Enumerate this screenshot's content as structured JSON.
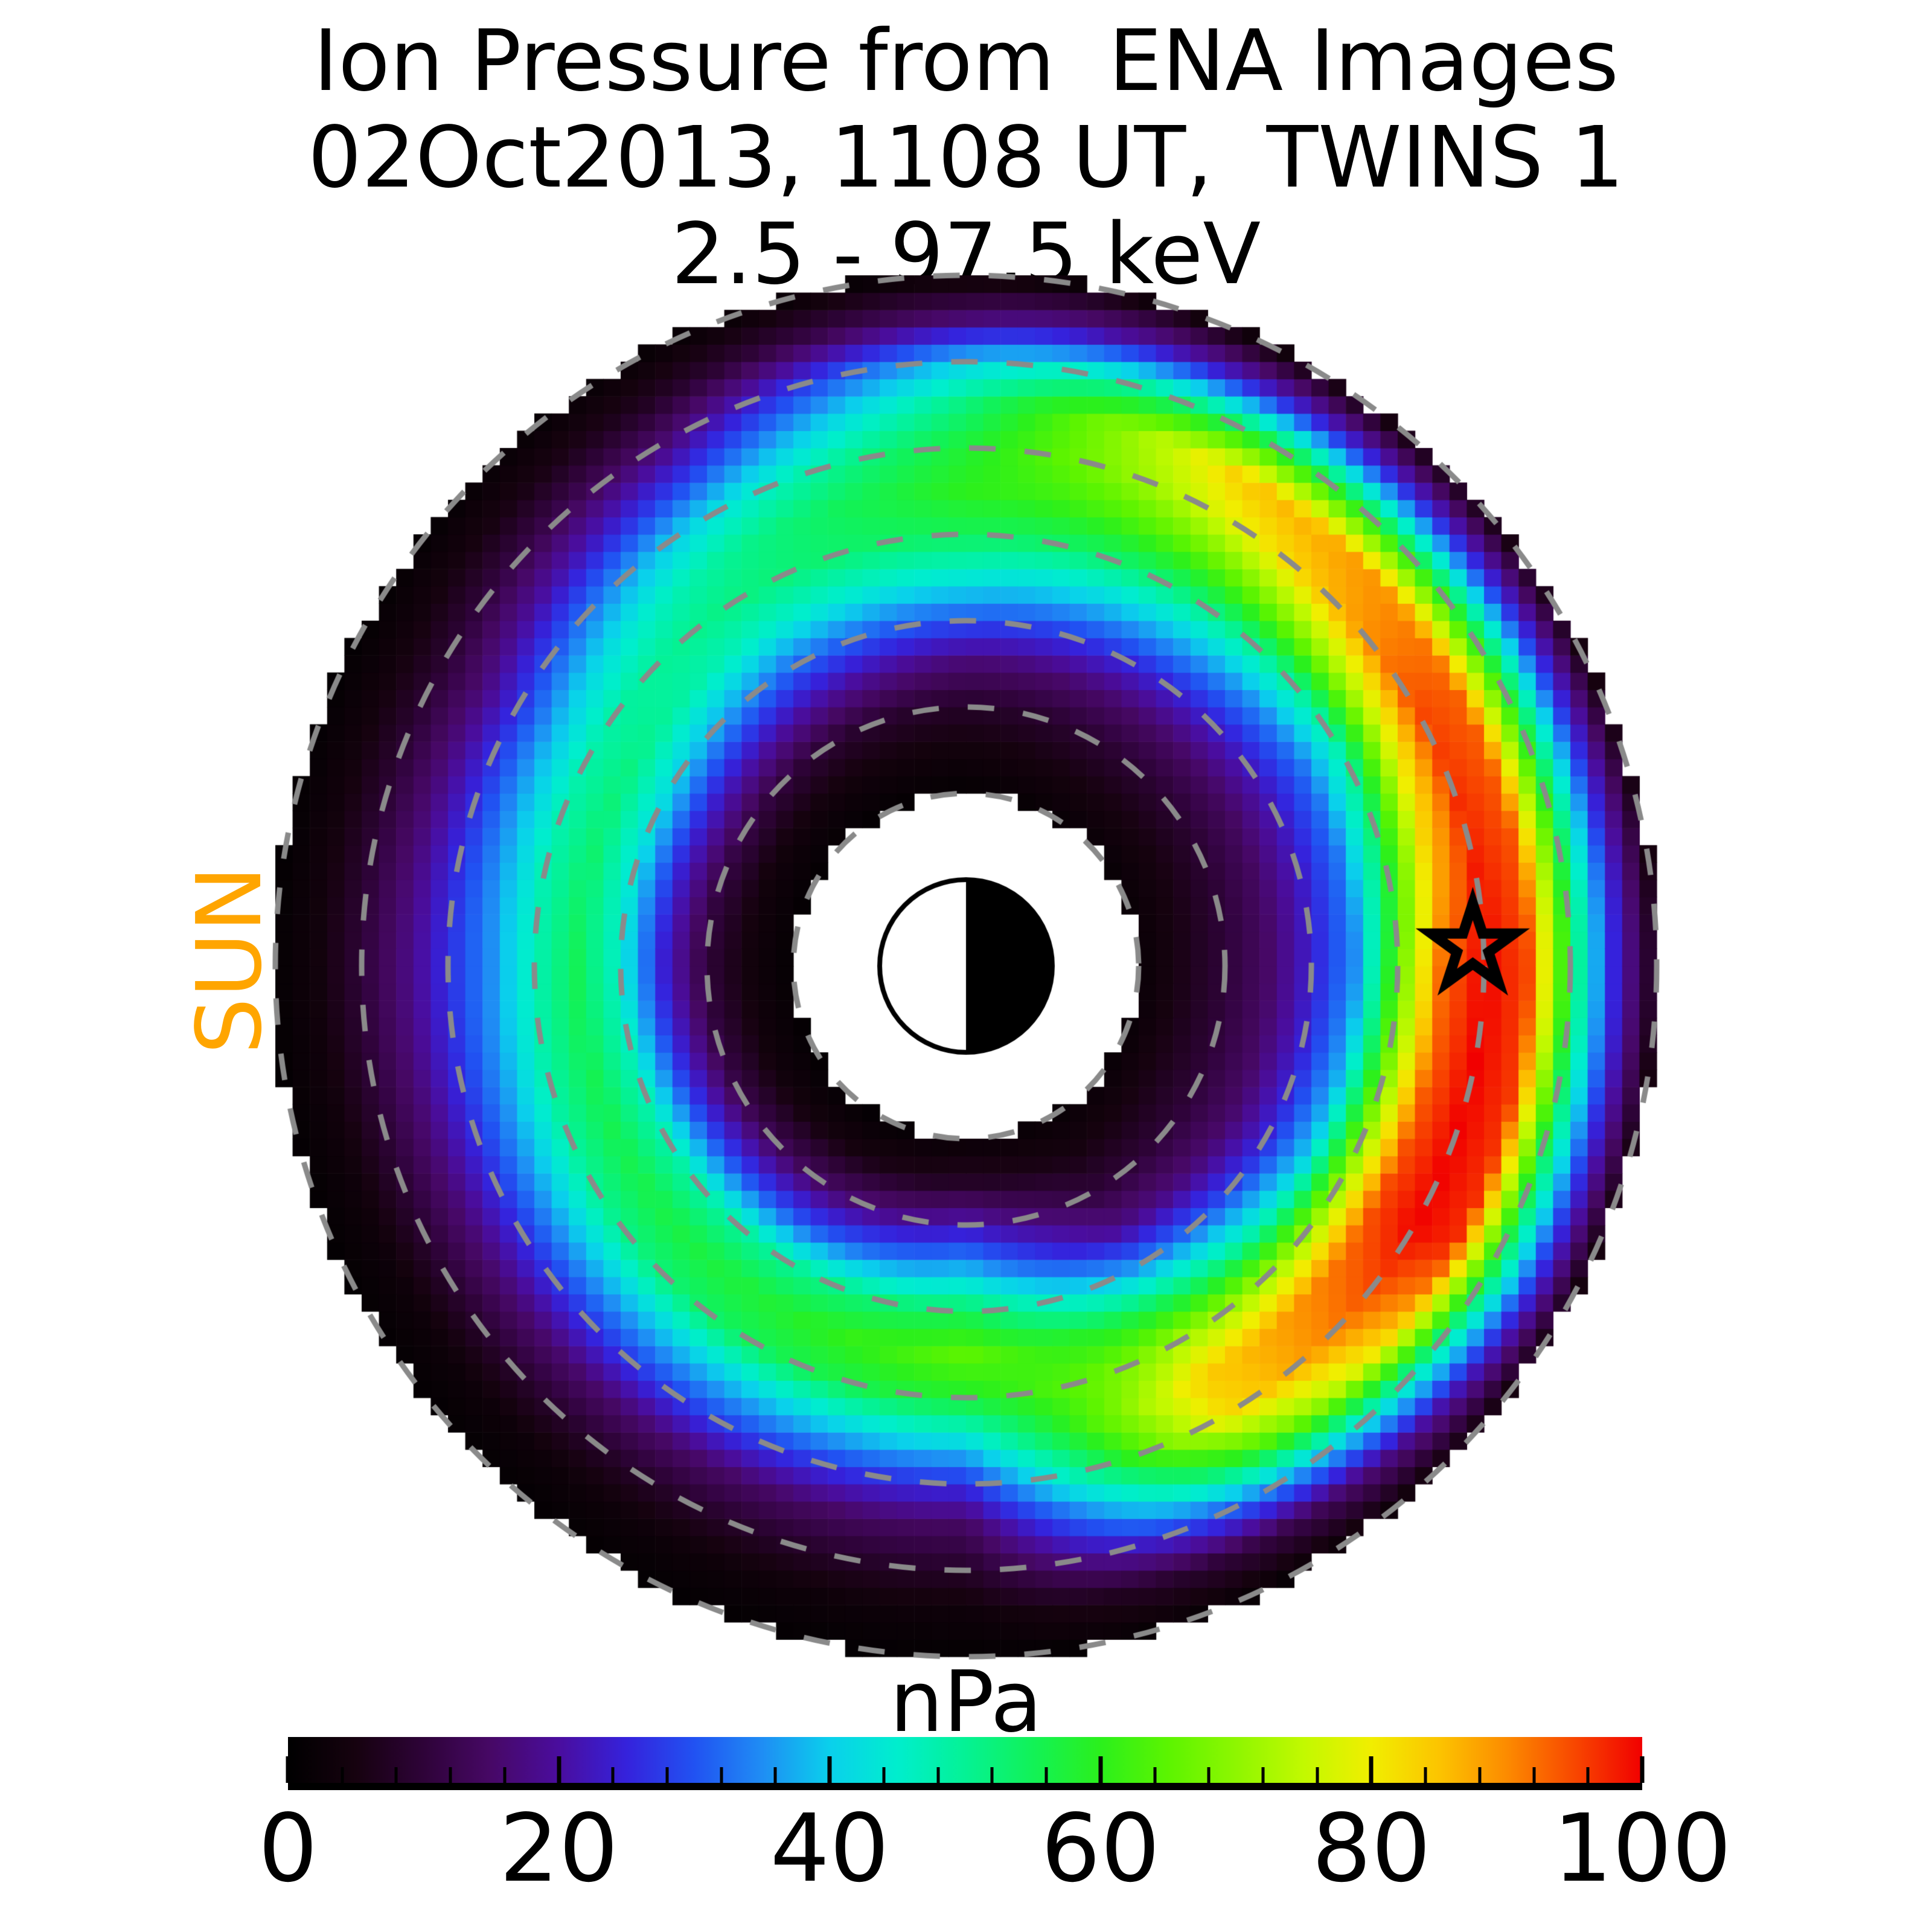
{
  "title": {
    "line1": "Ion Pressure from  ENA Images",
    "line2": "02Oct2013, 1108 UT,  TWINS 1",
    "line3": "2.5 - 97.5 keV"
  },
  "sun_label": {
    "text": "SUN",
    "color": "#FFA500"
  },
  "plot": {
    "dashed_rings_re": [
      2,
      3,
      4,
      5,
      6,
      7,
      8
    ],
    "ring_color": "#8a8a8a",
    "hole_radius_re": 2,
    "outer_radius_re": 8,
    "earth": {
      "radius_re": 1,
      "dayside": "left",
      "nightside": "right"
    },
    "star_marker": {
      "x_re": 5.87,
      "y_re": 0.22,
      "color": "#000000"
    }
  },
  "colorbar": {
    "label": "nPa",
    "min": 0,
    "max": 100,
    "major_ticks": [
      0,
      20,
      40,
      60,
      80,
      100
    ],
    "minor_tick_step": 4,
    "stops": [
      [
        0.0,
        "#000000"
      ],
      [
        0.05,
        "#16020f"
      ],
      [
        0.1,
        "#2e0338"
      ],
      [
        0.15,
        "#470866"
      ],
      [
        0.2,
        "#4a0d9e"
      ],
      [
        0.25,
        "#3522dc"
      ],
      [
        0.3,
        "#2152f2"
      ],
      [
        0.35,
        "#1f8df4"
      ],
      [
        0.4,
        "#0ad0ec"
      ],
      [
        0.45,
        "#00eecd"
      ],
      [
        0.5,
        "#04f295"
      ],
      [
        0.55,
        "#12f257"
      ],
      [
        0.6,
        "#2bf01c"
      ],
      [
        0.65,
        "#5cf400"
      ],
      [
        0.7,
        "#8ef600"
      ],
      [
        0.75,
        "#c2f900"
      ],
      [
        0.8,
        "#f1ee00"
      ],
      [
        0.85,
        "#fcc400"
      ],
      [
        0.9,
        "#fc8b00"
      ],
      [
        0.95,
        "#f84700"
      ],
      [
        1.0,
        "#f10000"
      ]
    ]
  },
  "chart_data": {
    "type": "heatmap",
    "coordinates": "polar",
    "units": "nPa",
    "value_range": [
      0,
      100
    ],
    "title": "Ion Pressure from ENA Images, 02Oct2013 1108 UT, TWINS 1, 2.5 - 97.5 keV",
    "legend_position": "bottom colorbar",
    "grid": "dashed gray circles at 2-8 Re",
    "cell_size_re": 0.2,
    "azimuth_convention": "degrees CCW from +x (right side of image); SUN direction is 180 (left)",
    "radii_re": [
      2.0,
      2.5,
      3.0,
      3.5,
      4.0,
      4.5,
      5.0,
      5.5,
      6.0,
      6.5,
      7.0,
      7.5,
      8.0
    ],
    "azimuths_deg": [
      0,
      30,
      60,
      90,
      120,
      150,
      180,
      210,
      240,
      270,
      300,
      330
    ],
    "values": [
      [
        2,
        6,
        10,
        15,
        24,
        35,
        65,
        92,
        100,
        95,
        55,
        25,
        5
      ],
      [
        2,
        5,
        9,
        14,
        22,
        32,
        48,
        75,
        95,
        93,
        60,
        28,
        5
      ],
      [
        2,
        5,
        9,
        15,
        25,
        38,
        52,
        65,
        78,
        85,
        58,
        26,
        4
      ],
      [
        1,
        4,
        8,
        16,
        30,
        44,
        55,
        60,
        58,
        52,
        40,
        16,
        2
      ],
      [
        1,
        4,
        9,
        20,
        32,
        45,
        52,
        50,
        42,
        28,
        16,
        7,
        2
      ],
      [
        1,
        4,
        12,
        25,
        42,
        52,
        48,
        38,
        26,
        16,
        9,
        4,
        1
      ],
      [
        1,
        4,
        10,
        24,
        45,
        55,
        47,
        35,
        26,
        17,
        10,
        4,
        1
      ],
      [
        1,
        4,
        12,
        28,
        48,
        56,
        50,
        38,
        26,
        16,
        9,
        3,
        1
      ],
      [
        1,
        5,
        15,
        30,
        50,
        58,
        55,
        40,
        28,
        15,
        8,
        3,
        1
      ],
      [
        2,
        8,
        22,
        38,
        55,
        65,
        58,
        42,
        26,
        14,
        8,
        3,
        1
      ],
      [
        2,
        5,
        10,
        18,
        35,
        55,
        72,
        84,
        82,
        62,
        35,
        12,
        2
      ],
      [
        2,
        6,
        10,
        15,
        25,
        40,
        70,
        95,
        100,
        97,
        58,
        28,
        5
      ]
    ],
    "annotations": [
      {
        "type": "star-marker",
        "x_re": 5.87,
        "y_re": 0.22
      },
      {
        "type": "earth-symbol",
        "x_re": 0,
        "y_re": 0
      },
      {
        "type": "text",
        "text": "SUN",
        "side": "left"
      }
    ]
  }
}
